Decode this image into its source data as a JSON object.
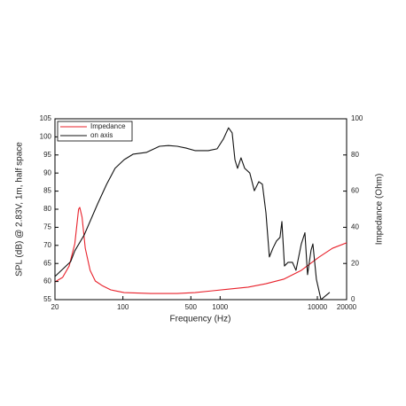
{
  "chart_data": {
    "type": "line",
    "xlabel": "Frequency (Hz)",
    "ylabel": "SPL (dB) @ 2.83V, 1m, half space",
    "y2label": "Impedance (Ohm)",
    "xscale": "log",
    "xlim": [
      20,
      20000
    ],
    "xticks": [
      20,
      100,
      500,
      1000,
      10000,
      20000
    ],
    "ylim": [
      55,
      105
    ],
    "yticks": [
      55,
      60,
      65,
      70,
      75,
      80,
      85,
      90,
      95,
      100,
      105
    ],
    "y2lim": [
      0,
      100
    ],
    "y2ticks": [
      0,
      20,
      40,
      60,
      80,
      100
    ],
    "legend": "upper left",
    "series": [
      {
        "name": "Impedance",
        "color": "#e8202a",
        "axis": "y2",
        "x": [
          20,
          24,
          28,
          32,
          35,
          36,
          38,
          41,
          46,
          52,
          61,
          75,
          103,
          193,
          362,
          551,
          840,
          1280,
          1940,
          2960,
          4500,
          6840,
          10400,
          14300,
          20000
        ],
        "values": [
          9.8,
          12.3,
          18.6,
          30.9,
          50,
          51,
          45.6,
          28.4,
          16.2,
          10.3,
          7.8,
          5.4,
          3.9,
          3.4,
          3.4,
          3.9,
          4.9,
          5.9,
          6.9,
          8.8,
          11.3,
          16.2,
          23.5,
          28.4,
          31.4
        ]
      },
      {
        "name": "on axis",
        "color": "#111111",
        "axis": "y",
        "x": [
          20,
          29,
          32,
          40,
          55,
          68,
          83,
          103,
          127,
          174,
          238,
          294,
          362,
          447,
          551,
          755,
          931,
          1080,
          1220,
          1330,
          1420,
          1510,
          1640,
          1790,
          2020,
          2250,
          2500,
          2720,
          2960,
          3210,
          3490,
          3800,
          4130,
          4320,
          4590,
          4990,
          5550,
          6030,
          6840,
          7450,
          7930,
          8620,
          9000,
          9780,
          10900,
          13400
        ],
        "values": [
          61.4,
          65.5,
          68.5,
          72.9,
          81.5,
          86.9,
          91.3,
          93.7,
          95.2,
          95.7,
          97.4,
          97.6,
          97.4,
          96.9,
          96.2,
          96.2,
          96.7,
          99.4,
          102.5,
          101.1,
          93.7,
          91.3,
          94.2,
          91.3,
          90.0,
          85.1,
          87.6,
          86.9,
          79,
          66.8,
          69.2,
          71.2,
          72.2,
          76.6,
          64.3,
          65.3,
          65.3,
          63.1,
          70.4,
          73.5,
          61.9,
          68.7,
          70.4,
          60.6,
          55,
          57
        ]
      }
    ]
  }
}
